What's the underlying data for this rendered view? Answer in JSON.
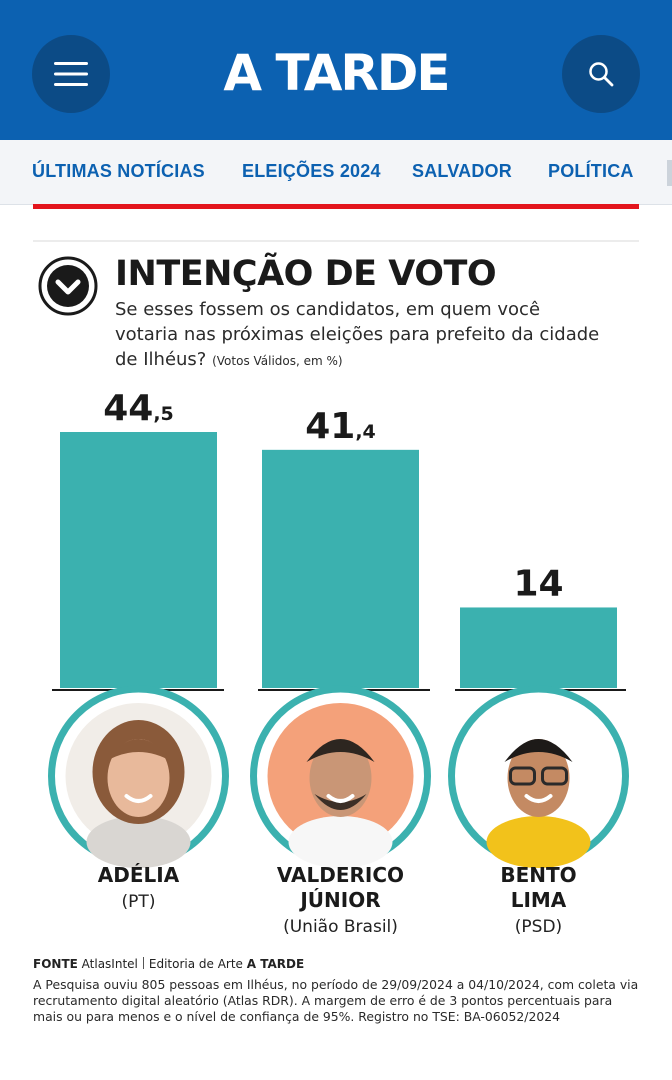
{
  "header": {
    "logo": "A TARDE",
    "menu_icon": "hamburger-menu-icon",
    "search_icon": "search-icon",
    "background": "#0c61b1"
  },
  "nav": {
    "items": [
      "ÚLTIMAS NOTÍCIAS",
      "ELEIÇÕES 2024",
      "SALVADOR",
      "POLÍTICA"
    ],
    "accent": "#e3151d"
  },
  "chart_data": {
    "type": "bar",
    "title": "INTENÇÃO DE VOTO",
    "subtitle": "Se esses fossem os candidatos, em quem você votaria nas próximas eleições para prefeito da cidade de Ilhéus?",
    "note": "(Votos Válidos, em %)",
    "categories": [
      "ADÉLIA",
      "VALDERICO JÚNIOR",
      "BENTO LIMA"
    ],
    "parties": [
      "(PT)",
      "(União Brasil)",
      "(PSD)"
    ],
    "values": [
      44.5,
      41.4,
      14
    ],
    "value_labels": [
      {
        "main": "44",
        "dec": ",5"
      },
      {
        "main": "41",
        "dec": ",4"
      },
      {
        "main": "14",
        "dec": ""
      }
    ],
    "name_lines": [
      [
        "ADÉLIA"
      ],
      [
        "VALDERICO",
        "JÚNIOR"
      ],
      [
        "BENTO",
        "LIMA"
      ]
    ],
    "bar_color": "#3bb1af",
    "ylim": [
      0,
      44.5
    ],
    "grid": false,
    "legend": "none"
  },
  "source": {
    "fonte_label": "FONTE",
    "fonte_value": "AtlasIntel",
    "credit_prefix": "Editoria de Arte",
    "credit_brand": "A TARDE",
    "methodology": "A Pesquisa ouviu 805 pessoas em Ilhéus, no período de 29/09/2024 a 04/10/2024, com coleta via recrutamento digital aleatório (Atlas RDR). A margem de erro é de 3 pontos percentuais para mais ou para menos e o nível de confiança de 95%. Registro no TSE: BA-06052/2024"
  }
}
